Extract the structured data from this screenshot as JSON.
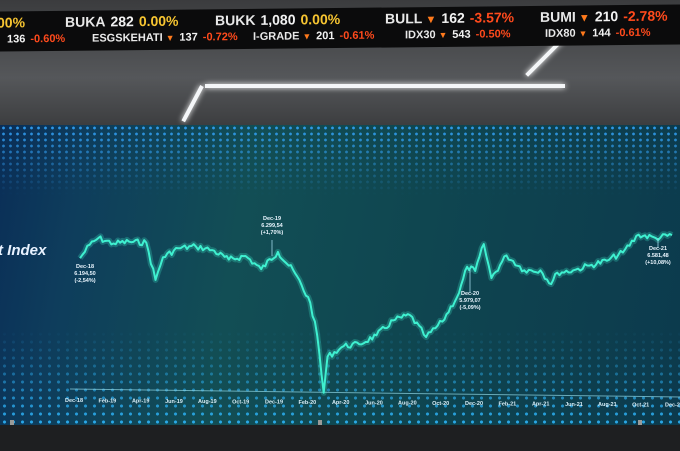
{
  "ticker": {
    "row1": [
      {
        "symbol": "",
        "price": "",
        "change": "00%",
        "direction": "flat"
      },
      {
        "symbol": "BUKA",
        "price": "282",
        "change": "0.00%",
        "direction": "flat"
      },
      {
        "symbol": "BUKK",
        "price": "1,080",
        "change": "0.00%",
        "direction": "flat"
      },
      {
        "symbol": "BULL",
        "price": "162",
        "change": "-3.57%",
        "direction": "down"
      },
      {
        "symbol": "BUMI",
        "price": "210",
        "change": "-2.78%",
        "direction": "down"
      }
    ],
    "row2": [
      {
        "symbol": "",
        "price": "136",
        "change": "-0.60%",
        "direction": "flat"
      },
      {
        "symbol": "ESGSKEHATI",
        "price": "137",
        "change": "-0.72%",
        "direction": "down"
      },
      {
        "symbol": "I-GRADE",
        "price": "201",
        "change": "-0.61%",
        "direction": "down"
      },
      {
        "symbol": "IDX30",
        "price": "543",
        "change": "-0.50%",
        "direction": "down"
      },
      {
        "symbol": "IDX80",
        "price": "144",
        "change": "-0.61%",
        "direction": "down"
      }
    ],
    "colors": {
      "up_flat": "#f7c531",
      "down": "#ff4a1c",
      "arrow": "#ff7a1c"
    },
    "arrow_icon": "triangle-down-icon"
  },
  "chart_data": {
    "type": "line",
    "title": "t Index",
    "line_color": "#3ff0d0",
    "grid": false,
    "ylim": [
      3900,
      6700
    ],
    "x_ticks": [
      "Dec-18",
      "Feb-19",
      "Apr-19",
      "Jun-19",
      "Aug-19",
      "Oct-19",
      "Dec-19",
      "Feb-20",
      "Apr-20",
      "Jun-20",
      "Aug-20",
      "Oct-20",
      "Dec-20",
      "Feb-21",
      "Apr-21",
      "Jun-21",
      "Aug-21",
      "Oct-21",
      "Dec-21"
    ],
    "series": [
      {
        "points": [
          [
            "2018-12-28",
            6194
          ],
          [
            "2019-01-15",
            6420
          ],
          [
            "2019-01-31",
            6530
          ],
          [
            "2019-02-28",
            6440
          ],
          [
            "2019-03-29",
            6470
          ],
          [
            "2019-04-30",
            6455
          ],
          [
            "2019-05-17",
            5830
          ],
          [
            "2019-05-31",
            6210
          ],
          [
            "2019-06-28",
            6360
          ],
          [
            "2019-07-31",
            6390
          ],
          [
            "2019-08-30",
            6330
          ],
          [
            "2019-09-30",
            6170
          ],
          [
            "2019-10-31",
            6230
          ],
          [
            "2019-11-29",
            6010
          ],
          [
            "2019-12-30",
            6300
          ],
          [
            "2020-01-31",
            5940
          ],
          [
            "2020-02-28",
            5450
          ],
          [
            "2020-03-12",
            4900
          ],
          [
            "2020-03-24",
            3937
          ],
          [
            "2020-03-31",
            4540
          ],
          [
            "2020-04-30",
            4720
          ],
          [
            "2020-05-29",
            4750
          ],
          [
            "2020-06-30",
            4900
          ],
          [
            "2020-07-31",
            5150
          ],
          [
            "2020-08-31",
            5240
          ],
          [
            "2020-09-30",
            4870
          ],
          [
            "2020-10-30",
            5130
          ],
          [
            "2020-11-30",
            5610
          ],
          [
            "2020-12-15",
            6050
          ],
          [
            "2020-12-30",
            5979
          ],
          [
            "2021-01-15",
            6430
          ],
          [
            "2021-01-29",
            5860
          ],
          [
            "2021-02-26",
            6240
          ],
          [
            "2021-03-31",
            5990
          ],
          [
            "2021-04-30",
            5990
          ],
          [
            "2021-05-20",
            5760
          ],
          [
            "2021-05-31",
            5950
          ],
          [
            "2021-06-30",
            5990
          ],
          [
            "2021-07-30",
            6070
          ],
          [
            "2021-08-31",
            6150
          ],
          [
            "2021-09-30",
            6290
          ],
          [
            "2021-10-29",
            6590
          ],
          [
            "2021-11-30",
            6530
          ],
          [
            "2021-12-30",
            6581
          ]
        ]
      }
    ],
    "annotations": [
      {
        "label": "Dec-18",
        "value": "6.194,50",
        "change": "(-2,54%)"
      },
      {
        "label": "Dec-19",
        "value": "6.299,54",
        "change": "(+1,70%)"
      },
      {
        "label": "Dec-20",
        "value": "5.979,07",
        "change": "(-5,09%)"
      },
      {
        "label": "Dec-21",
        "value": "6.581,48",
        "change": "(+10,08%)"
      }
    ]
  }
}
